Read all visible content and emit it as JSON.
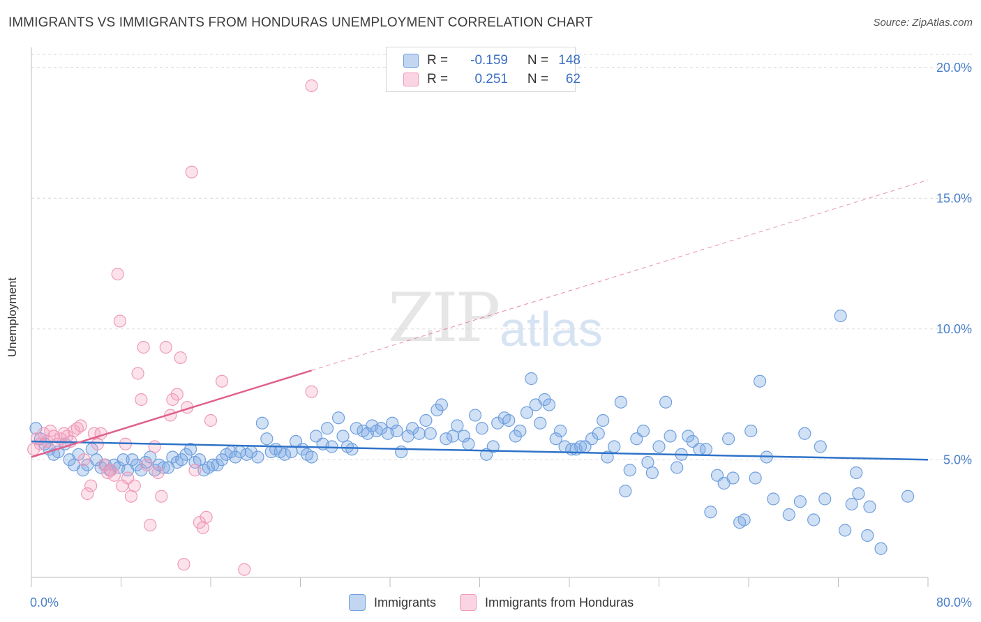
{
  "title": "IMMIGRANTS VS IMMIGRANTS FROM HONDURAS UNEMPLOYMENT CORRELATION CHART",
  "source": "Source: ZipAtlas.com",
  "watermark": {
    "zip": "ZIP",
    "atlas": "atlas"
  },
  "legend": {
    "rows": [
      {
        "r_label": "R =",
        "r_value": "-0.159",
        "n_label": "N =",
        "n_value": "148"
      },
      {
        "r_label": "R =",
        "r_value": "0.251",
        "n_label": "N =",
        "n_value": "62"
      }
    ]
  },
  "bottom_legend": [
    "Immigrants",
    "Immigrants from Honduras"
  ],
  "colors": {
    "blue_fill": "rgba(120,165,225,0.35)",
    "blue_stroke": "#6f9fdd",
    "blue_line": "#2f73c9",
    "pink_fill": "rgba(245,160,190,0.30)",
    "pink_stroke": "#ee9ab8",
    "pink_line": "#e0608c",
    "tick": "#4a7fc8",
    "grid": "#d9d9d9"
  },
  "chart_data": {
    "type": "scatter",
    "xlabel": "",
    "ylabel": "Unemployment",
    "xlim": [
      0,
      80
    ],
    "ylim": [
      0.5,
      20.5
    ],
    "x_tick_labels": [
      {
        "v": 0,
        "t": "0.0%"
      },
      {
        "v": 80,
        "t": "80.0%"
      }
    ],
    "x_minor_ticks": [
      0,
      8,
      16,
      24,
      32,
      40,
      48,
      56,
      64,
      72,
      80
    ],
    "y_ticks": [
      {
        "v": 5,
        "t": "5.0%"
      },
      {
        "v": 10,
        "t": "10.0%"
      },
      {
        "v": 15,
        "t": "15.0%"
      },
      {
        "v": 20,
        "t": "20.0%"
      }
    ],
    "grid_y": true,
    "legend_placement": "top-center",
    "series": [
      {
        "name": "Immigrants",
        "color": "blue",
        "trend": {
          "x": [
            0,
            80
          ],
          "y": [
            5.7,
            5.0
          ],
          "dashed_from": null
        },
        "points": [
          [
            0.4,
            6.2
          ],
          [
            0.8,
            5.8
          ],
          [
            1.2,
            5.6
          ],
          [
            1.6,
            5.4
          ],
          [
            2.0,
            5.2
          ],
          [
            2.4,
            5.3
          ],
          [
            3.0,
            5.6
          ],
          [
            3.4,
            5.0
          ],
          [
            3.8,
            4.8
          ],
          [
            4.2,
            5.2
          ],
          [
            4.6,
            4.6
          ],
          [
            5.0,
            4.8
          ],
          [
            5.4,
            5.4
          ],
          [
            5.8,
            5.0
          ],
          [
            6.2,
            4.7
          ],
          [
            6.6,
            4.8
          ],
          [
            7.0,
            4.6
          ],
          [
            7.4,
            4.8
          ],
          [
            7.8,
            4.7
          ],
          [
            8.2,
            5.0
          ],
          [
            8.6,
            4.6
          ],
          [
            9.0,
            5.0
          ],
          [
            9.4,
            4.8
          ],
          [
            9.8,
            4.6
          ],
          [
            10.2,
            4.9
          ],
          [
            10.6,
            5.1
          ],
          [
            11.0,
            4.6
          ],
          [
            11.4,
            4.8
          ],
          [
            11.8,
            4.7
          ],
          [
            12.2,
            4.7
          ],
          [
            12.6,
            5.1
          ],
          [
            13.0,
            4.9
          ],
          [
            13.4,
            5.0
          ],
          [
            13.8,
            5.2
          ],
          [
            14.2,
            5.4
          ],
          [
            14.6,
            4.9
          ],
          [
            15.0,
            5.0
          ],
          [
            15.4,
            4.6
          ],
          [
            15.8,
            4.7
          ],
          [
            16.2,
            4.8
          ],
          [
            16.6,
            4.8
          ],
          [
            17.0,
            5.0
          ],
          [
            17.4,
            5.2
          ],
          [
            17.8,
            5.3
          ],
          [
            18.2,
            5.1
          ],
          [
            18.6,
            5.3
          ],
          [
            19.2,
            5.2
          ],
          [
            19.6,
            5.3
          ],
          [
            20.2,
            5.1
          ],
          [
            20.6,
            6.4
          ],
          [
            21.0,
            5.8
          ],
          [
            21.4,
            5.3
          ],
          [
            21.8,
            5.4
          ],
          [
            22.2,
            5.3
          ],
          [
            22.6,
            5.2
          ],
          [
            23.2,
            5.3
          ],
          [
            23.6,
            5.7
          ],
          [
            24.2,
            5.4
          ],
          [
            24.6,
            5.2
          ],
          [
            25.0,
            5.1
          ],
          [
            25.4,
            5.9
          ],
          [
            26.0,
            5.6
          ],
          [
            26.4,
            6.2
          ],
          [
            26.8,
            5.5
          ],
          [
            27.4,
            6.6
          ],
          [
            27.8,
            5.9
          ],
          [
            28.2,
            5.5
          ],
          [
            28.6,
            5.4
          ],
          [
            29.0,
            6.2
          ],
          [
            29.6,
            6.1
          ],
          [
            30.0,
            6.0
          ],
          [
            30.4,
            6.3
          ],
          [
            30.8,
            6.1
          ],
          [
            31.2,
            6.2
          ],
          [
            31.8,
            6.0
          ],
          [
            32.2,
            6.4
          ],
          [
            32.6,
            6.1
          ],
          [
            33.0,
            5.3
          ],
          [
            33.6,
            5.9
          ],
          [
            34.0,
            6.2
          ],
          [
            34.6,
            6.0
          ],
          [
            35.2,
            6.5
          ],
          [
            35.6,
            6.0
          ],
          [
            36.2,
            6.9
          ],
          [
            36.6,
            7.1
          ],
          [
            37.0,
            5.8
          ],
          [
            37.6,
            5.9
          ],
          [
            38.0,
            6.3
          ],
          [
            38.6,
            5.9
          ],
          [
            39.0,
            5.6
          ],
          [
            39.6,
            6.7
          ],
          [
            40.2,
            6.2
          ],
          [
            40.6,
            5.2
          ],
          [
            41.2,
            5.5
          ],
          [
            41.6,
            6.4
          ],
          [
            42.2,
            6.6
          ],
          [
            42.6,
            6.5
          ],
          [
            43.2,
            5.9
          ],
          [
            43.6,
            6.1
          ],
          [
            44.2,
            6.8
          ],
          [
            44.6,
            8.1
          ],
          [
            45.0,
            7.1
          ],
          [
            45.4,
            6.4
          ],
          [
            45.8,
            7.3
          ],
          [
            46.2,
            7.1
          ],
          [
            46.8,
            5.8
          ],
          [
            47.2,
            6.1
          ],
          [
            47.6,
            5.5
          ],
          [
            48.2,
            5.4
          ],
          [
            48.6,
            5.4
          ],
          [
            49.0,
            5.5
          ],
          [
            49.4,
            5.5
          ],
          [
            50.0,
            5.8
          ],
          [
            50.6,
            6.0
          ],
          [
            51.0,
            6.5
          ],
          [
            51.4,
            5.1
          ],
          [
            52.0,
            5.5
          ],
          [
            52.6,
            7.2
          ],
          [
            53.0,
            3.8
          ],
          [
            53.4,
            4.6
          ],
          [
            54.0,
            5.8
          ],
          [
            54.6,
            6.1
          ],
          [
            55.0,
            4.9
          ],
          [
            55.4,
            4.5
          ],
          [
            56.0,
            5.5
          ],
          [
            56.6,
            7.2
          ],
          [
            57.0,
            5.9
          ],
          [
            57.6,
            4.7
          ],
          [
            58.0,
            5.2
          ],
          [
            58.6,
            5.9
          ],
          [
            59.0,
            5.7
          ],
          [
            59.6,
            5.4
          ],
          [
            60.2,
            5.4
          ],
          [
            60.6,
            3.0
          ],
          [
            61.2,
            4.4
          ],
          [
            61.8,
            4.1
          ],
          [
            62.2,
            5.8
          ],
          [
            62.6,
            4.3
          ],
          [
            63.2,
            2.6
          ],
          [
            63.6,
            2.7
          ],
          [
            64.2,
            6.1
          ],
          [
            64.6,
            4.3
          ],
          [
            65.0,
            8.0
          ],
          [
            65.6,
            5.1
          ],
          [
            66.2,
            3.5
          ],
          [
            67.6,
            2.9
          ],
          [
            68.6,
            3.4
          ],
          [
            69.0,
            6.0
          ],
          [
            69.8,
            2.7
          ],
          [
            70.4,
            5.5
          ],
          [
            70.8,
            3.5
          ],
          [
            72.2,
            10.5
          ],
          [
            72.6,
            2.3
          ],
          [
            73.2,
            3.3
          ],
          [
            73.6,
            4.5
          ],
          [
            73.8,
            3.7
          ],
          [
            74.6,
            2.1
          ],
          [
            74.8,
            3.2
          ],
          [
            75.8,
            1.6
          ],
          [
            78.2,
            3.6
          ]
        ]
      },
      {
        "name": "Immigrants from Honduras",
        "color": "pink",
        "trend": {
          "x": [
            0,
            80
          ],
          "y": [
            5.1,
            15.7
          ],
          "solid_to": 25
        },
        "points": [
          [
            0.2,
            5.4
          ],
          [
            0.5,
            5.8
          ],
          [
            0.8,
            5.6
          ],
          [
            1.1,
            6.0
          ],
          [
            1.4,
            5.7
          ],
          [
            1.7,
            6.1
          ],
          [
            2.0,
            5.9
          ],
          [
            2.3,
            5.6
          ],
          [
            2.6,
            5.8
          ],
          [
            2.9,
            6.0
          ],
          [
            3.2,
            5.9
          ],
          [
            3.5,
            5.7
          ],
          [
            3.8,
            6.1
          ],
          [
            4.1,
            6.2
          ],
          [
            4.4,
            6.3
          ],
          [
            4.7,
            5.0
          ],
          [
            5.0,
            3.7
          ],
          [
            5.3,
            4.0
          ],
          [
            5.6,
            6.0
          ],
          [
            5.9,
            5.6
          ],
          [
            6.2,
            6.0
          ],
          [
            6.5,
            4.8
          ],
          [
            6.8,
            4.5
          ],
          [
            7.1,
            4.6
          ],
          [
            7.4,
            4.4
          ],
          [
            7.7,
            12.1
          ],
          [
            7.9,
            10.3
          ],
          [
            8.1,
            4.0
          ],
          [
            8.4,
            5.6
          ],
          [
            8.6,
            4.3
          ],
          [
            8.9,
            3.6
          ],
          [
            9.2,
            4.0
          ],
          [
            9.5,
            8.3
          ],
          [
            9.8,
            7.3
          ],
          [
            10.0,
            9.3
          ],
          [
            10.3,
            4.8
          ],
          [
            10.6,
            2.5
          ],
          [
            11.0,
            5.5
          ],
          [
            11.3,
            4.5
          ],
          [
            11.6,
            3.6
          ],
          [
            12.0,
            9.3
          ],
          [
            12.4,
            6.7
          ],
          [
            12.6,
            7.3
          ],
          [
            13.0,
            7.5
          ],
          [
            13.3,
            8.9
          ],
          [
            13.6,
            1.0
          ],
          [
            13.9,
            7.0
          ],
          [
            14.3,
            16.0
          ],
          [
            14.6,
            4.6
          ],
          [
            15.0,
            2.6
          ],
          [
            15.3,
            2.4
          ],
          [
            15.6,
            2.8
          ],
          [
            16.0,
            6.5
          ],
          [
            17.0,
            8.0
          ],
          [
            19.0,
            0.8
          ],
          [
            25.0,
            7.6
          ],
          [
            25.0,
            19.3
          ]
        ]
      }
    ]
  }
}
